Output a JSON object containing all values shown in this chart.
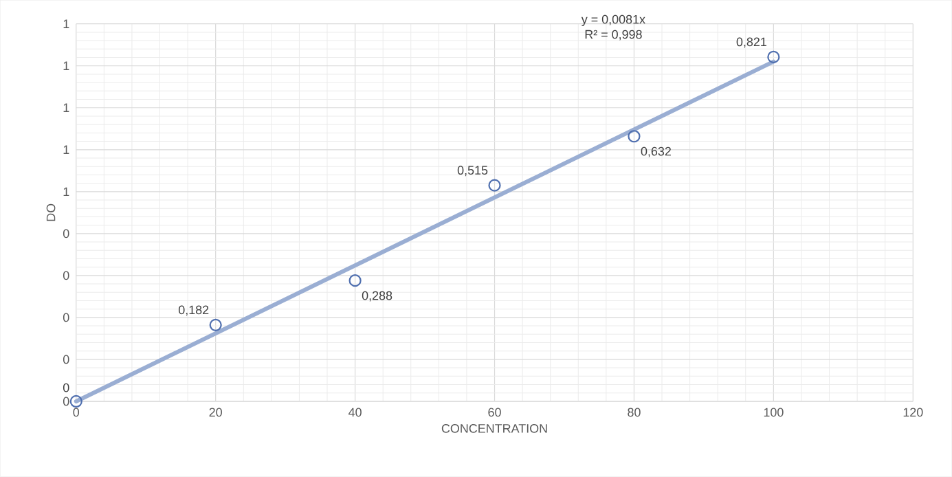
{
  "chart_data": {
    "type": "scatter",
    "xlabel": "CONCENTRATION",
    "ylabel": "DO",
    "xlim": [
      0,
      120
    ],
    "xticks": [
      0,
      20,
      40,
      60,
      80,
      100,
      120
    ],
    "ylim": [
      0,
      0.9
    ],
    "yticks": [
      {
        "value": 0,
        "label": "0"
      },
      {
        "value": 0.1,
        "label": "0"
      },
      {
        "value": 0.2,
        "label": "0"
      },
      {
        "value": 0.3,
        "label": "0"
      },
      {
        "value": 0.4,
        "label": "0"
      },
      {
        "value": 0.5,
        "label": "1"
      },
      {
        "value": 0.6,
        "label": "1"
      },
      {
        "value": 0.7,
        "label": "1"
      },
      {
        "value": 0.8,
        "label": "1"
      },
      {
        "value": 0.9,
        "label": "1"
      }
    ],
    "grid": true,
    "marker": "circle",
    "series": [
      {
        "color": "#4f6faf",
        "x": [
          0,
          20,
          40,
          60,
          80,
          100
        ],
        "values": [
          0,
          0.182,
          0.288,
          0.515,
          0.632,
          0.821
        ],
        "value_labels": [
          "0",
          "0,182",
          "0,288",
          "0,515",
          "0,632",
          "0,821"
        ]
      },
      {
        "type": "line",
        "marker": "none",
        "color": "#9aaed3",
        "x": [
          0,
          100
        ],
        "values": [
          0,
          0.81
        ]
      }
    ],
    "annotations": [
      "y = 0,0081x",
      "R² = 0,998"
    ]
  }
}
